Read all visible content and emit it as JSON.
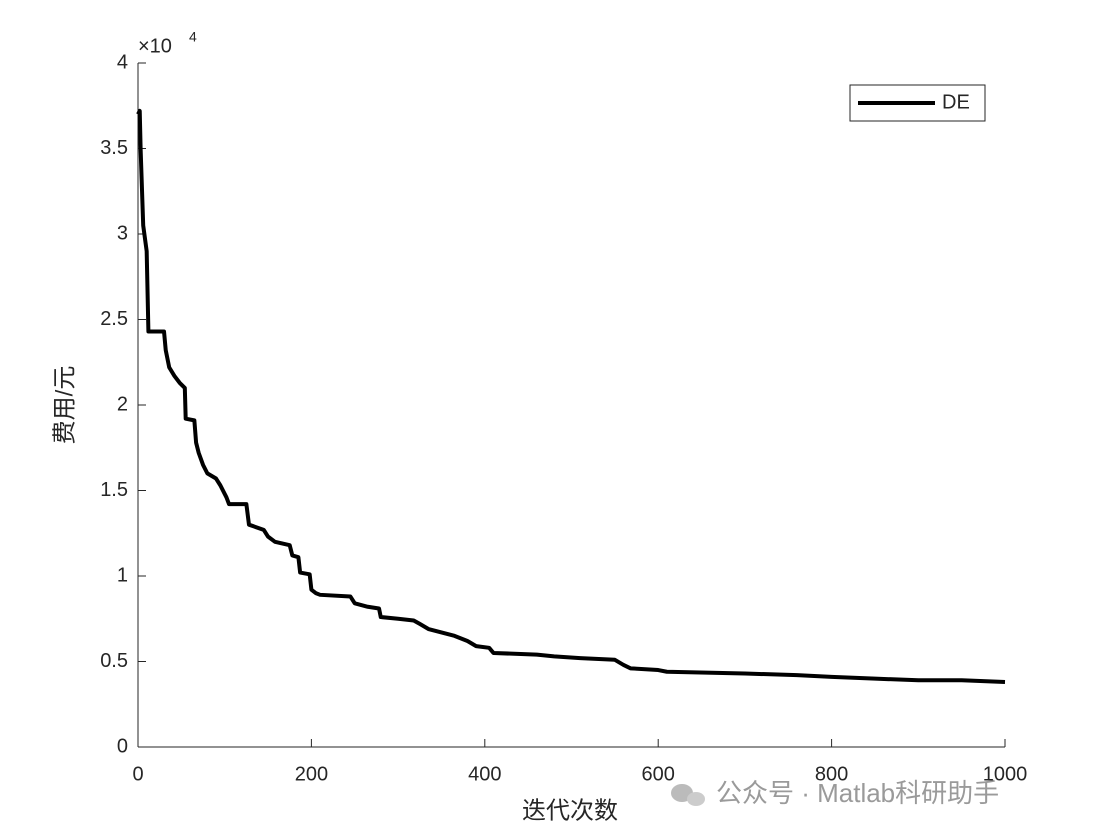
{
  "chart_data": {
    "type": "line",
    "xlabel": "迭代次数",
    "ylabel": "费用/元",
    "y_multiplier": {
      "base": "×10",
      "exponent": "4"
    },
    "watermark": "公众号 · Matlab科研助手",
    "x": [
      0,
      2,
      3,
      5,
      6,
      10,
      12,
      30,
      32,
      36,
      42,
      48,
      54,
      55,
      65,
      67,
      70,
      75,
      80,
      90,
      95,
      102,
      105,
      125,
      128,
      145,
      150,
      158,
      175,
      178,
      185,
      187,
      198,
      200,
      205,
      210,
      245,
      250,
      265,
      278,
      280,
      300,
      318,
      325,
      335,
      350,
      365,
      380,
      390,
      405,
      410,
      460,
      480,
      510,
      550,
      560,
      568,
      600,
      610,
      700,
      760,
      800,
      850,
      900,
      950,
      1000
    ],
    "series": [
      {
        "name": "DE",
        "color": "#000000",
        "values": [
          3.7,
          3.72,
          3.5,
          3.2,
          3.05,
          2.9,
          2.43,
          2.43,
          2.32,
          2.22,
          2.17,
          2.13,
          2.1,
          1.92,
          1.91,
          1.78,
          1.72,
          1.65,
          1.6,
          1.57,
          1.53,
          1.46,
          1.42,
          1.42,
          1.3,
          1.27,
          1.23,
          1.2,
          1.18,
          1.12,
          1.11,
          1.02,
          1.01,
          0.92,
          0.9,
          0.89,
          0.88,
          0.84,
          0.82,
          0.81,
          0.76,
          0.75,
          0.74,
          0.72,
          0.69,
          0.67,
          0.65,
          0.62,
          0.59,
          0.58,
          0.55,
          0.54,
          0.53,
          0.52,
          0.51,
          0.48,
          0.46,
          0.45,
          0.44,
          0.43,
          0.42,
          0.41,
          0.4,
          0.39,
          0.39,
          0.38
        ]
      }
    ],
    "xlim": [
      0,
      1000
    ],
    "xticks": [
      0,
      200,
      400,
      600,
      800,
      1000
    ],
    "ylim": [
      0,
      4
    ],
    "yticks": [
      0,
      0.5,
      1,
      1.5,
      2,
      2.5,
      3,
      3.5,
      4
    ],
    "legend": "top-right",
    "grid": false
  }
}
